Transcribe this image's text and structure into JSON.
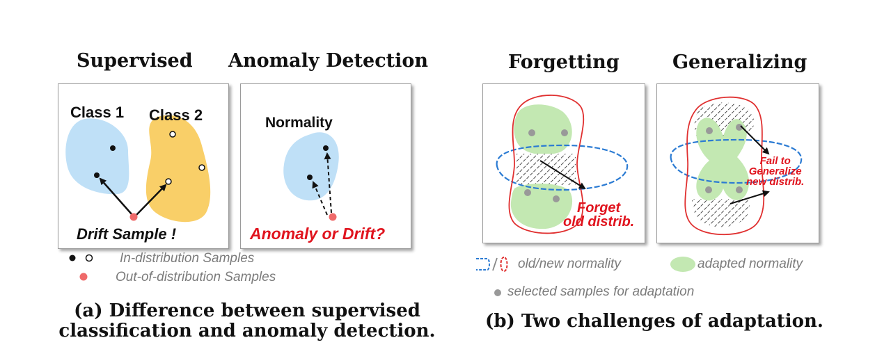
{
  "panel_a": {
    "title_supervised": "Supervised",
    "title_anomaly": "Anomaly Detection",
    "class1_label": "Class 1",
    "class2_label": "Class 2",
    "drift_sample_label": "Drift Sample",
    "drift_exclaim": "!",
    "normality_label": "Normality",
    "anomaly_or_drift_label": "Anomaly or Drift?",
    "legend_in_dist": "In-distribution Samples",
    "legend_out_dist": "Out-of-distribution Samples",
    "caption_line1": "(a) Difference between supervised",
    "caption_line2": "classification and anomaly detection."
  },
  "panel_b": {
    "title_forgetting": "Forgetting",
    "title_generalizing": "Generalizing",
    "forget_line1": "Forget",
    "forget_line2": "old distrib.",
    "fail_line1": "Fail to",
    "fail_line2": "Generalize",
    "fail_line3": "new distrib.",
    "legend_old_new": "old/new normality",
    "legend_adapted": "adapted normality",
    "legend_selected": "selected samples for adaptation",
    "caption": "(b) Two challenges of adaptation."
  },
  "colors": {
    "class1_fill": "#bfe0f7",
    "class2_fill": "#f9cf68",
    "adapted_fill": "#c3e8b2",
    "old_normality": "#2b7bd3",
    "new_normality": "#e03030",
    "ood_sample": "#ef6a6a",
    "text_red": "#e0141e"
  }
}
